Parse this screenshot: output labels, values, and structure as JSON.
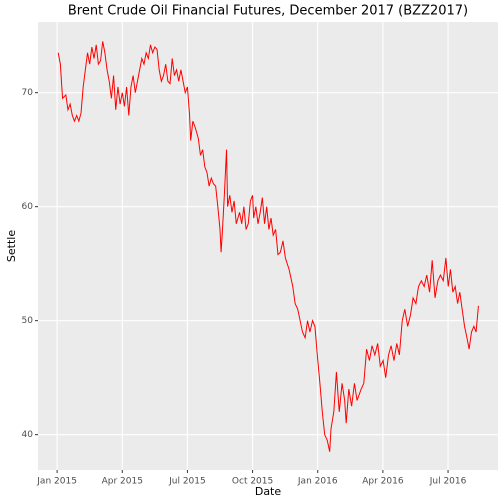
{
  "chart_data": {
    "type": "line",
    "title": "Brent Crude Oil Financial Futures, December 2017 (BZZ2017)",
    "xlabel": "Date",
    "ylabel": "Settle",
    "xlim": [
      -0.88,
      20.3
    ],
    "xticks": [
      {
        "value": 0,
        "label": "Jan 2015"
      },
      {
        "value": 3,
        "label": "Apr 2015"
      },
      {
        "value": 6,
        "label": "Jul 2015"
      },
      {
        "value": 9,
        "label": "Oct 2015"
      },
      {
        "value": 12,
        "label": "Jan 2016"
      },
      {
        "value": 15,
        "label": "Apr 2016"
      },
      {
        "value": 18,
        "label": "Jul 2016"
      }
    ],
    "ylim": [
      36.9,
      76.2
    ],
    "yticks": [
      40,
      50,
      60,
      70
    ],
    "grid": true,
    "series": [
      {
        "color": "#ff0000",
        "x": [
          0.05,
          0.15,
          0.25,
          0.4,
          0.5,
          0.6,
          0.7,
          0.8,
          0.9,
          1.0,
          1.1,
          1.2,
          1.3,
          1.4,
          1.5,
          1.6,
          1.7,
          1.8,
          1.9,
          2.0,
          2.1,
          2.2,
          2.3,
          2.4,
          2.5,
          2.6,
          2.7,
          2.8,
          2.9,
          3.0,
          3.1,
          3.2,
          3.3,
          3.4,
          3.5,
          3.6,
          3.7,
          3.8,
          3.9,
          4.0,
          4.1,
          4.2,
          4.3,
          4.4,
          4.5,
          4.6,
          4.7,
          4.8,
          4.9,
          5.0,
          5.1,
          5.2,
          5.3,
          5.4,
          5.5,
          5.6,
          5.7,
          5.8,
          5.9,
          6.0,
          6.1,
          6.15,
          6.25,
          6.35,
          6.5,
          6.6,
          6.7,
          6.8,
          6.9,
          7.0,
          7.1,
          7.2,
          7.3,
          7.4,
          7.5,
          7.55,
          7.6,
          7.7,
          7.8,
          7.85,
          7.95,
          8.05,
          8.15,
          8.25,
          8.4,
          8.5,
          8.6,
          8.7,
          8.8,
          8.9,
          9.0,
          9.05,
          9.15,
          9.25,
          9.35,
          9.45,
          9.55,
          9.65,
          9.75,
          9.85,
          9.95,
          10.06,
          10.17,
          10.28,
          10.4,
          10.51,
          10.68,
          10.85,
          10.96,
          11.08,
          11.19,
          11.3,
          11.42,
          11.53,
          11.64,
          11.76,
          11.87,
          11.98,
          12.1,
          12.21,
          12.32,
          12.44,
          12.55,
          12.61,
          12.74,
          12.86,
          12.99,
          13.12,
          13.24,
          13.31,
          13.43,
          13.56,
          13.69,
          13.81,
          14.0,
          14.12,
          14.25,
          14.38,
          14.5,
          14.63,
          14.76,
          14.88,
          15.01,
          15.13,
          15.26,
          15.38,
          15.51,
          15.64,
          15.76,
          15.89,
          16.01,
          16.14,
          16.27,
          16.39,
          16.52,
          16.64,
          16.77,
          16.9,
          17.02,
          17.15,
          17.27,
          17.4,
          17.53,
          17.65,
          17.78,
          17.9,
          18.01,
          18.11,
          18.22,
          18.33,
          18.44,
          18.54,
          18.65,
          18.76,
          18.87,
          18.97,
          19.08,
          19.19,
          19.29,
          19.4
        ],
        "values": [
          73.5,
          72.5,
          69.5,
          69.8,
          68.5,
          69.0,
          68.0,
          67.5,
          68.0,
          67.5,
          68.2,
          70.5,
          72.0,
          73.5,
          72.5,
          74.0,
          73.0,
          74.2,
          72.5,
          72.8,
          74.5,
          73.5,
          72.0,
          71.0,
          69.5,
          71.5,
          68.5,
          70.5,
          69.0,
          70.0,
          68.8,
          70.5,
          68.0,
          70.5,
          71.5,
          70.0,
          71.0,
          72.0,
          73.0,
          72.5,
          73.5,
          73.0,
          74.2,
          73.5,
          74.0,
          73.8,
          72.0,
          71.0,
          71.5,
          72.5,
          71.0,
          70.8,
          73.0,
          71.5,
          72.0,
          71.0,
          72.0,
          71.0,
          70.0,
          70.5,
          68.0,
          65.8,
          67.5,
          67.0,
          66.0,
          64.5,
          65.0,
          63.5,
          63.0,
          61.8,
          62.5,
          62.0,
          61.8,
          60.0,
          58.0,
          56.0,
          57.5,
          61.0,
          65.0,
          60.0,
          61.0,
          59.5,
          60.5,
          58.5,
          59.5,
          58.5,
          60.0,
          58.0,
          58.5,
          60.5,
          61.0,
          59.0,
          60.0,
          58.5,
          59.5,
          60.8,
          58.5,
          60.0,
          58.0,
          59.0,
          57.5,
          58.0,
          55.8,
          56.0,
          57.0,
          55.5,
          54.5,
          53.0,
          51.5,
          51.0,
          50.0,
          49.0,
          48.5,
          50.0,
          49.0,
          50.0,
          49.5,
          47.0,
          44.5,
          42.0,
          40.0,
          39.5,
          38.5,
          40.5,
          42.0,
          45.5,
          42.0,
          44.5,
          43.0,
          41.0,
          44.0,
          42.5,
          44.5,
          43.0,
          44.0,
          44.5,
          47.5,
          46.5,
          47.8,
          47.0,
          48.0,
          46.0,
          46.5,
          45.0,
          47.0,
          47.8,
          46.5,
          48.0,
          47.0,
          50.0,
          51.0,
          49.5,
          50.5,
          52.0,
          51.5,
          53.0,
          53.5,
          53.0,
          54.0,
          52.5,
          55.3,
          52.0,
          53.5,
          54.0,
          53.5,
          55.5,
          53.0,
          54.5,
          52.5,
          53.0,
          51.5,
          52.5,
          51.0,
          49.5,
          48.5,
          47.5,
          49.0,
          49.5,
          49.0,
          51.3
        ]
      }
    ]
  }
}
